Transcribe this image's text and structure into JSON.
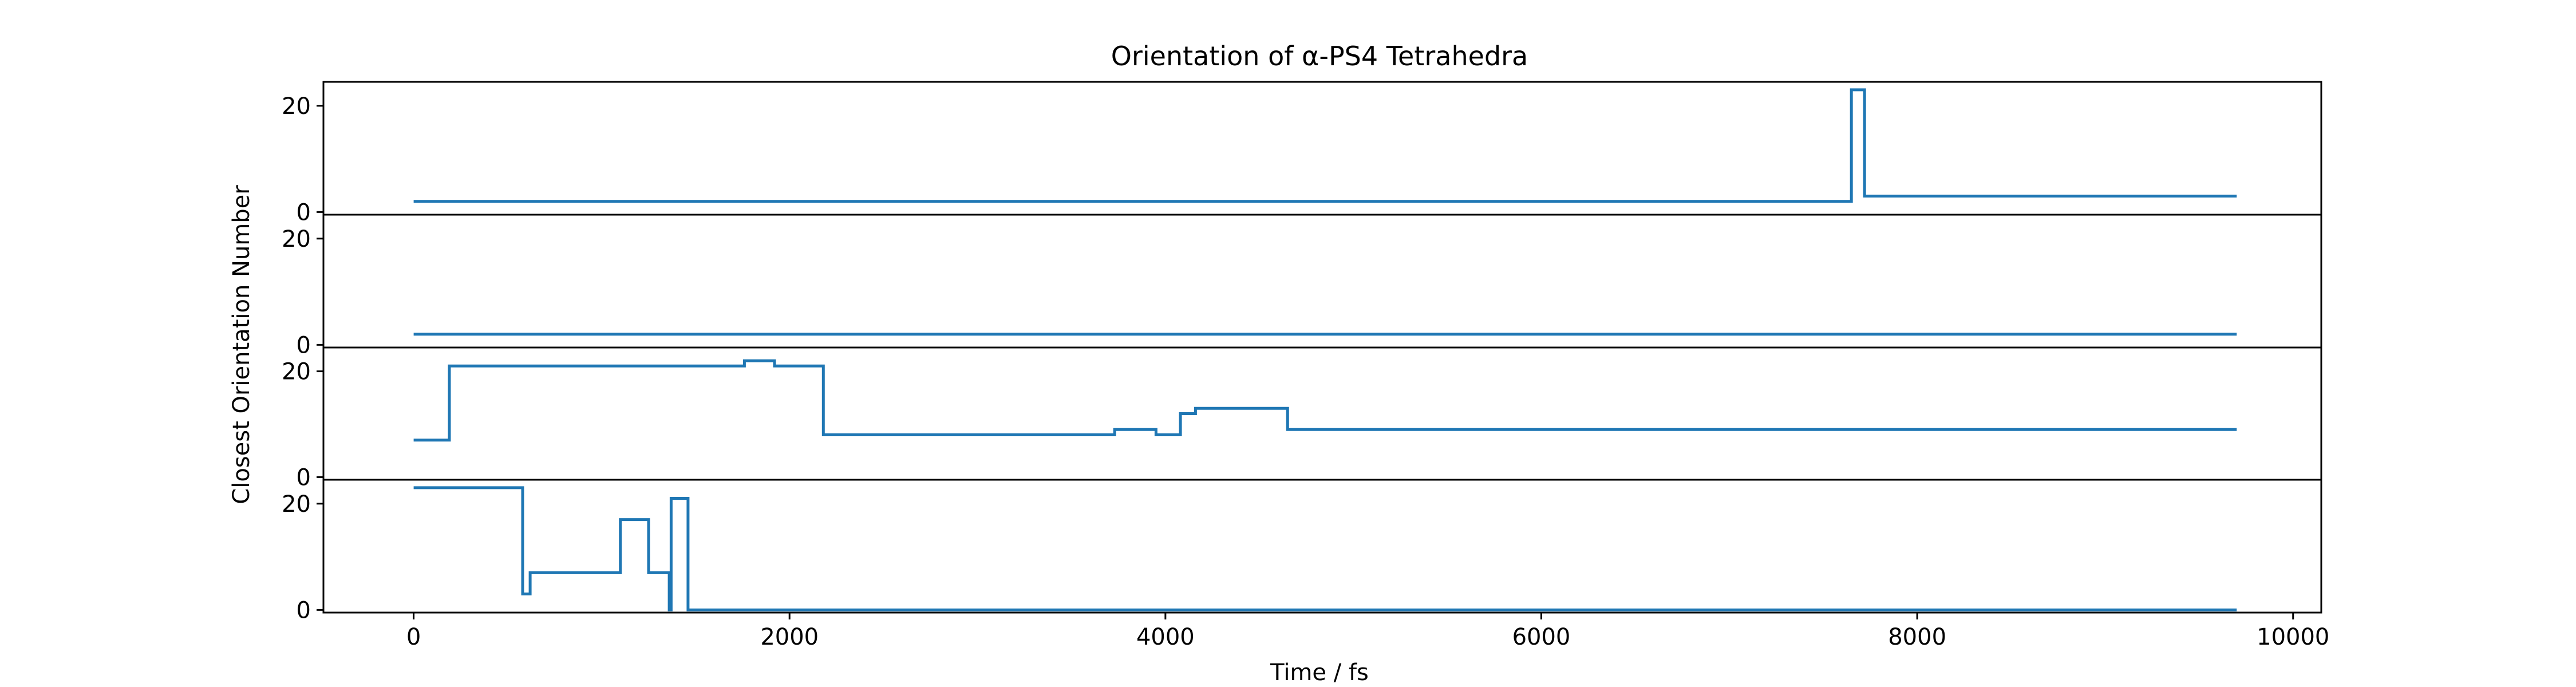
{
  "chart_data": {
    "type": "line",
    "title": "Orientation of α-PS4 Tetrahedra",
    "xlabel": "Time / fs",
    "ylabel": "Closest Orientation Number",
    "xlim": [
      -480,
      10150
    ],
    "ylim": [
      -0.5,
      24.5
    ],
    "x_ticks": [
      0,
      2000,
      4000,
      6000,
      8000,
      10000
    ],
    "x_tick_labels": [
      "0",
      "2000",
      "4000",
      "6000",
      "8000",
      "10000"
    ],
    "y_ticks": [
      0,
      20
    ],
    "y_tick_labels": [
      "0",
      "20"
    ],
    "line_color": "#1f77b4",
    "subplots": [
      {
        "name": "",
        "x": [
          0,
          7650,
          7650,
          7720,
          7720,
          9700
        ],
        "y": [
          2,
          2,
          23,
          23,
          3,
          3
        ]
      },
      {
        "name": "",
        "x": [
          0,
          9700
        ],
        "y": [
          2,
          2
        ]
      },
      {
        "name": "",
        "x": [
          0,
          190,
          190,
          1760,
          1760,
          1920,
          1920,
          2180,
          2180,
          3730,
          3730,
          3950,
          3950,
          4080,
          4080,
          4160,
          4160,
          4650,
          4650,
          9700
        ],
        "y": [
          7,
          7,
          21,
          21,
          22,
          22,
          21,
          21,
          8,
          8,
          9,
          9,
          8,
          8,
          12,
          12,
          13,
          13,
          9,
          9
        ]
      },
      {
        "name": "",
        "x": [
          0,
          580,
          580,
          620,
          620,
          1100,
          1100,
          1250,
          1250,
          1360,
          1360,
          1370,
          1370,
          1460,
          1460,
          9700
        ],
        "y": [
          23,
          23,
          3,
          3,
          7,
          7,
          17,
          17,
          7,
          7,
          0,
          0,
          21,
          21,
          0,
          0
        ]
      }
    ]
  }
}
